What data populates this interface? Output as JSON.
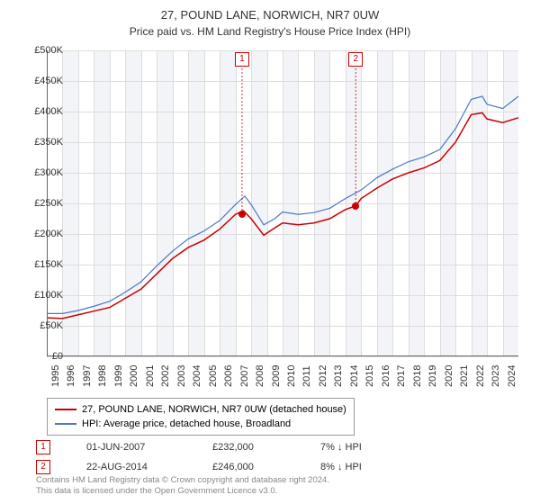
{
  "title": "27, POUND LANE, NORWICH, NR7 0UW",
  "subtitle": "Price paid vs. HM Land Registry's House Price Index (HPI)",
  "chart": {
    "type": "line",
    "background_color": "#ffffff",
    "grid_color": "#dddddd",
    "shade_color": "#f2f4f8",
    "x_start": 1995,
    "x_end": 2025,
    "x_ticks": [
      1995,
      1996,
      1997,
      1998,
      1999,
      2000,
      2001,
      2002,
      2003,
      2004,
      2005,
      2006,
      2007,
      2008,
      2009,
      2010,
      2011,
      2012,
      2013,
      2014,
      2015,
      2016,
      2017,
      2018,
      2019,
      2020,
      2021,
      2022,
      2023,
      2024
    ],
    "y_min": 0,
    "y_max": 500000,
    "y_ticks": [
      0,
      50000,
      100000,
      150000,
      200000,
      250000,
      300000,
      350000,
      400000,
      450000,
      500000
    ],
    "y_tick_labels": [
      "£0",
      "£50K",
      "£100K",
      "£150K",
      "£200K",
      "£250K",
      "£300K",
      "£350K",
      "£400K",
      "£450K",
      "£500K"
    ],
    "series": [
      {
        "name": "27, POUND LANE, NORWICH, NR7 0UW (detached house)",
        "color": "#cc0000",
        "width": 1.5,
        "data": [
          [
            1995,
            63000
          ],
          [
            1996,
            62000
          ],
          [
            1997,
            68000
          ],
          [
            1998,
            74000
          ],
          [
            1999,
            80000
          ],
          [
            2000,
            95000
          ],
          [
            2001,
            110000
          ],
          [
            2002,
            135000
          ],
          [
            2003,
            160000
          ],
          [
            2004,
            178000
          ],
          [
            2005,
            190000
          ],
          [
            2006,
            208000
          ],
          [
            2007,
            232000
          ],
          [
            2007.5,
            238000
          ],
          [
            2008,
            225000
          ],
          [
            2008.8,
            198000
          ],
          [
            2009.5,
            210000
          ],
          [
            2010,
            218000
          ],
          [
            2011,
            215000
          ],
          [
            2012,
            218000
          ],
          [
            2013,
            225000
          ],
          [
            2014,
            240000
          ],
          [
            2014.65,
            246000
          ],
          [
            2015,
            258000
          ],
          [
            2016,
            275000
          ],
          [
            2017,
            290000
          ],
          [
            2018,
            300000
          ],
          [
            2019,
            308000
          ],
          [
            2020,
            320000
          ],
          [
            2021,
            350000
          ],
          [
            2022,
            395000
          ],
          [
            2022.7,
            398000
          ],
          [
            2023,
            388000
          ],
          [
            2024,
            382000
          ],
          [
            2025,
            390000
          ]
        ]
      },
      {
        "name": "HPI: Average price, detached house, Broadland",
        "color": "#4a7ac7",
        "width": 1.2,
        "data": [
          [
            1995,
            70000
          ],
          [
            1996,
            70000
          ],
          [
            1997,
            75000
          ],
          [
            1998,
            82000
          ],
          [
            1999,
            90000
          ],
          [
            2000,
            105000
          ],
          [
            2001,
            122000
          ],
          [
            2002,
            148000
          ],
          [
            2003,
            172000
          ],
          [
            2004,
            192000
          ],
          [
            2005,
            205000
          ],
          [
            2006,
            222000
          ],
          [
            2007,
            248000
          ],
          [
            2007.6,
            262000
          ],
          [
            2008,
            248000
          ],
          [
            2008.8,
            215000
          ],
          [
            2009.5,
            225000
          ],
          [
            2010,
            236000
          ],
          [
            2011,
            232000
          ],
          [
            2012,
            235000
          ],
          [
            2013,
            242000
          ],
          [
            2014,
            258000
          ],
          [
            2015,
            272000
          ],
          [
            2016,
            292000
          ],
          [
            2017,
            306000
          ],
          [
            2018,
            318000
          ],
          [
            2019,
            326000
          ],
          [
            2020,
            338000
          ],
          [
            2021,
            372000
          ],
          [
            2022,
            420000
          ],
          [
            2022.7,
            425000
          ],
          [
            2023,
            412000
          ],
          [
            2024,
            405000
          ],
          [
            2025,
            425000
          ]
        ]
      }
    ],
    "sale_markers": [
      {
        "n": 1,
        "x": 2007.42,
        "y": 232000,
        "color": "#cc0000"
      },
      {
        "n": 2,
        "x": 2014.65,
        "y": 246000,
        "color": "#cc0000"
      }
    ],
    "marker_box_color": "#cc0000"
  },
  "legend": {
    "items": [
      {
        "color": "#cc0000",
        "label": "27, POUND LANE, NORWICH, NR7 0UW (detached house)"
      },
      {
        "color": "#4a7ac7",
        "label": "HPI: Average price, detached house, Broadland"
      }
    ]
  },
  "sales": [
    {
      "n": "1",
      "date": "01-JUN-2007",
      "price": "£232,000",
      "delta": "7% ↓ HPI"
    },
    {
      "n": "2",
      "date": "22-AUG-2014",
      "price": "£246,000",
      "delta": "8% ↓ HPI"
    }
  ],
  "footer_line1": "Contains HM Land Registry data © Crown copyright and database right 2024.",
  "footer_line2": "This data is licensed under the Open Government Licence v3.0."
}
